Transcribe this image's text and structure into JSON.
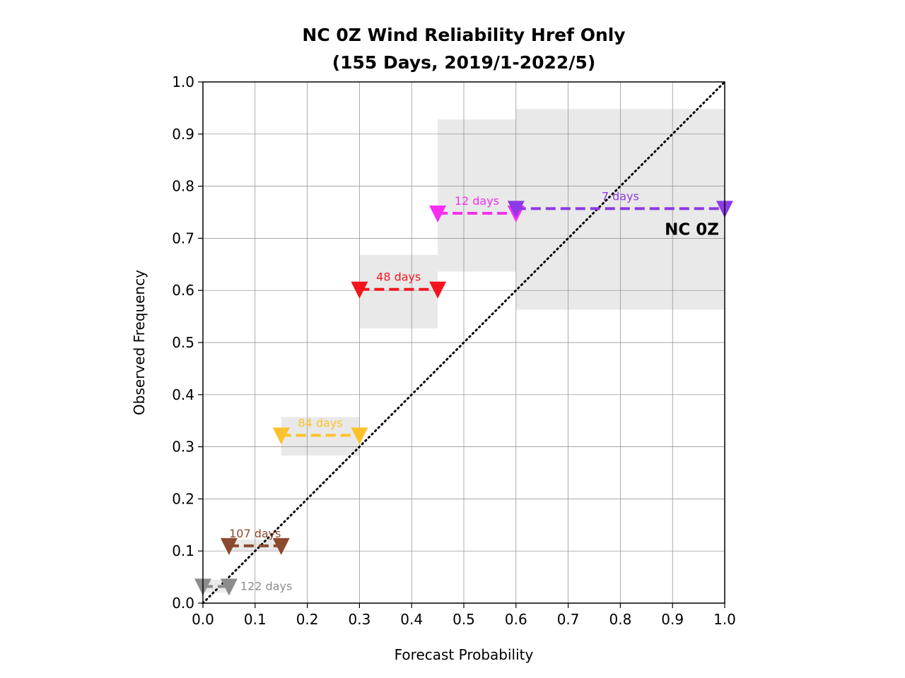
{
  "chart_data": {
    "type": "line",
    "title_line1": "NC 0Z Wind Reliability Href Only",
    "title_line2": "(155 Days, 2019/1-2022/5)",
    "xlabel": "Forecast Probability",
    "ylabel": "Observed Frequency",
    "xlim": [
      0,
      1
    ],
    "ylim": [
      0,
      1
    ],
    "xticks": [
      "0.0",
      "0.1",
      "0.2",
      "0.3",
      "0.4",
      "0.5",
      "0.6",
      "0.7",
      "0.8",
      "0.9",
      "1.0"
    ],
    "yticks": [
      "0.0",
      "0.1",
      "0.2",
      "0.3",
      "0.4",
      "0.5",
      "0.6",
      "0.7",
      "0.8",
      "0.9",
      "1.0"
    ],
    "grid": true,
    "diagonal": true,
    "series_label": "NC 0Z",
    "bins": [
      {
        "x0": 0.0,
        "x1": 0.05,
        "y": 0.032,
        "ci": [
          0.02,
          0.045
        ],
        "days": "122 days",
        "color": "#8c8c8c"
      },
      {
        "x0": 0.05,
        "x1": 0.15,
        "y": 0.11,
        "ci": [
          0.1,
          0.122
        ],
        "days": "107 days",
        "color": "#8b4a2e"
      },
      {
        "x0": 0.15,
        "x1": 0.3,
        "y": 0.322,
        "ci": [
          0.283,
          0.357
        ],
        "days": "84 days",
        "color": "#fcc22b"
      },
      {
        "x0": 0.3,
        "x1": 0.45,
        "y": 0.602,
        "ci": [
          0.527,
          0.668
        ],
        "days": "48 days",
        "color": "#f4141d"
      },
      {
        "x0": 0.45,
        "x1": 0.6,
        "y": 0.748,
        "ci": [
          0.636,
          0.928
        ],
        "days": "12 days",
        "color": "#f72ef2"
      },
      {
        "x0": 0.6,
        "x1": 1.0,
        "y": 0.757,
        "ci": [
          0.563,
          0.948
        ],
        "days": "7 days",
        "color": "#8c3ae6"
      }
    ]
  }
}
